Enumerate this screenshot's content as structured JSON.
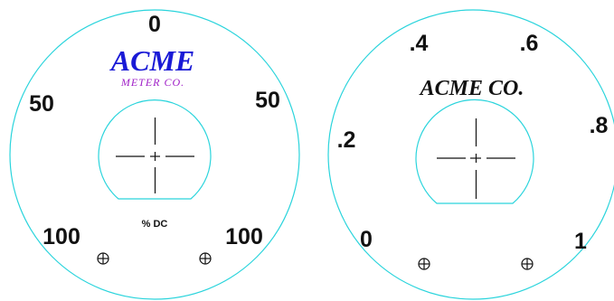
{
  "colors": {
    "outline": "#2ad4dc",
    "ink": "#111111",
    "brand_blue": "#1a1ad6",
    "brand_purple": "#a020c8"
  },
  "dial_left": {
    "label_top": "0",
    "label_mid_left": "50",
    "label_mid_right": "50",
    "label_bottom_left": "100",
    "label_bottom_right": "100",
    "brand": "ACME",
    "sub_brand": "METER CO.",
    "unit": "% DC",
    "icons": [
      "crosshair-icon",
      "mounting-screw-icon",
      "mounting-screw-icon"
    ]
  },
  "dial_right": {
    "labels": [
      ".4",
      ".6",
      ".2",
      ".8",
      "0",
      "1"
    ],
    "brand": "ACME CO.",
    "icons": [
      "crosshair-icon",
      "mounting-screw-icon",
      "mounting-screw-icon"
    ]
  }
}
